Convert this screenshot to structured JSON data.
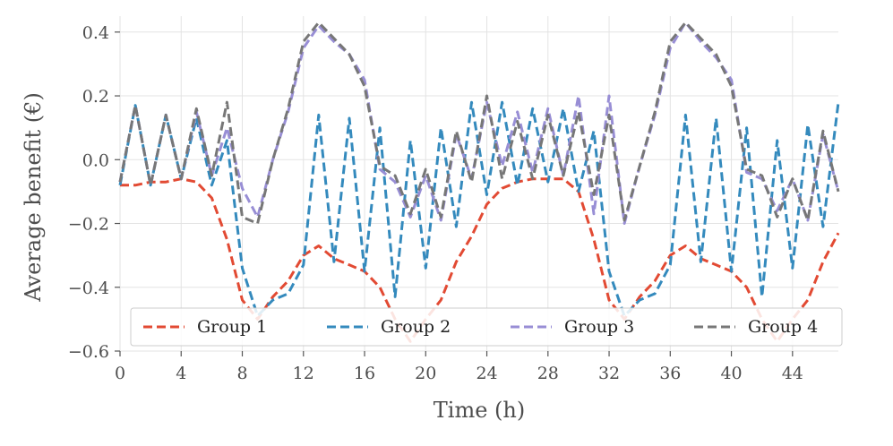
{
  "chart_data": {
    "type": "line",
    "title": "",
    "xlabel": "Time (h)",
    "ylabel": "Average benefit (€)",
    "xlim": [
      0,
      47
    ],
    "ylim": [
      -0.6,
      0.45
    ],
    "xticks": [
      0,
      4,
      8,
      12,
      16,
      20,
      24,
      28,
      32,
      36,
      40,
      44
    ],
    "yticks": [
      -0.6,
      -0.4,
      -0.2,
      0.0,
      0.2,
      0.4
    ],
    "ytick_labels": [
      "−0.6",
      "−0.4",
      "−0.2",
      "0.0",
      "0.2",
      "0.4"
    ],
    "grid": true,
    "legend_position": "lower-center",
    "x": [
      0,
      1,
      2,
      3,
      4,
      5,
      6,
      7,
      8,
      9,
      10,
      11,
      12,
      13,
      14,
      15,
      16,
      17,
      18,
      19,
      20,
      21,
      22,
      23,
      24,
      25,
      26,
      27,
      28,
      29,
      30,
      31,
      32,
      33,
      34,
      35,
      36,
      37,
      38,
      39,
      40,
      41,
      42,
      43,
      44,
      45,
      46,
      47
    ],
    "series": [
      {
        "name": "Group 1",
        "color": "#E24A33",
        "values": [
          -0.08,
          -0.08,
          -0.07,
          -0.07,
          -0.06,
          -0.07,
          -0.12,
          -0.25,
          -0.44,
          -0.5,
          -0.43,
          -0.38,
          -0.3,
          -0.27,
          -0.31,
          -0.33,
          -0.35,
          -0.4,
          -0.5,
          -0.57,
          -0.5,
          -0.44,
          -0.32,
          -0.24,
          -0.14,
          -0.09,
          -0.07,
          -0.06,
          -0.06,
          -0.06,
          -0.1,
          -0.25,
          -0.44,
          -0.5,
          -0.43,
          -0.38,
          -0.3,
          -0.27,
          -0.31,
          -0.33,
          -0.35,
          -0.4,
          -0.5,
          -0.57,
          -0.5,
          -0.44,
          -0.32,
          -0.23
        ]
      },
      {
        "name": "Group 2",
        "color": "#348ABD",
        "values": [
          -0.08,
          0.17,
          -0.08,
          0.14,
          -0.06,
          0.13,
          -0.08,
          0.06,
          -0.34,
          -0.49,
          -0.44,
          -0.42,
          -0.33,
          0.14,
          -0.32,
          0.13,
          -0.35,
          0.1,
          -0.43,
          0.06,
          -0.34,
          0.1,
          -0.21,
          0.18,
          -0.11,
          0.18,
          -0.08,
          0.16,
          -0.07,
          0.16,
          -0.1,
          0.09,
          -0.35,
          -0.49,
          -0.44,
          -0.42,
          -0.33,
          0.14,
          -0.32,
          0.13,
          -0.35,
          0.1,
          -0.43,
          0.06,
          -0.34,
          0.11,
          -0.21,
          0.18
        ]
      },
      {
        "name": "Group 3",
        "color": "#988ED5",
        "values": [
          -0.07,
          0.17,
          -0.08,
          0.14,
          -0.06,
          0.15,
          -0.05,
          0.1,
          -0.09,
          -0.18,
          0.0,
          0.15,
          0.35,
          0.42,
          0.37,
          0.33,
          0.25,
          -0.03,
          -0.07,
          -0.18,
          -0.05,
          -0.19,
          0.08,
          -0.06,
          0.18,
          -0.02,
          0.15,
          -0.04,
          0.16,
          -0.05,
          0.2,
          -0.17,
          0.2,
          -0.2,
          -0.02,
          0.14,
          0.35,
          0.43,
          0.37,
          0.32,
          0.25,
          -0.04,
          -0.06,
          -0.16,
          -0.06,
          -0.19,
          0.08,
          -0.1
        ]
      },
      {
        "name": "Group 4",
        "color": "#777777",
        "values": [
          -0.07,
          0.17,
          -0.08,
          0.14,
          -0.06,
          0.16,
          -0.05,
          0.18,
          -0.18,
          -0.2,
          0.0,
          0.16,
          0.37,
          0.43,
          0.38,
          0.33,
          0.23,
          -0.02,
          -0.05,
          -0.17,
          -0.03,
          -0.18,
          0.09,
          -0.07,
          0.2,
          -0.06,
          0.12,
          -0.06,
          0.14,
          -0.05,
          0.15,
          -0.11,
          0.14,
          -0.19,
          -0.02,
          0.15,
          0.37,
          0.43,
          0.38,
          0.33,
          0.23,
          -0.03,
          -0.05,
          -0.18,
          -0.06,
          -0.19,
          0.09,
          -0.1
        ]
      }
    ]
  }
}
